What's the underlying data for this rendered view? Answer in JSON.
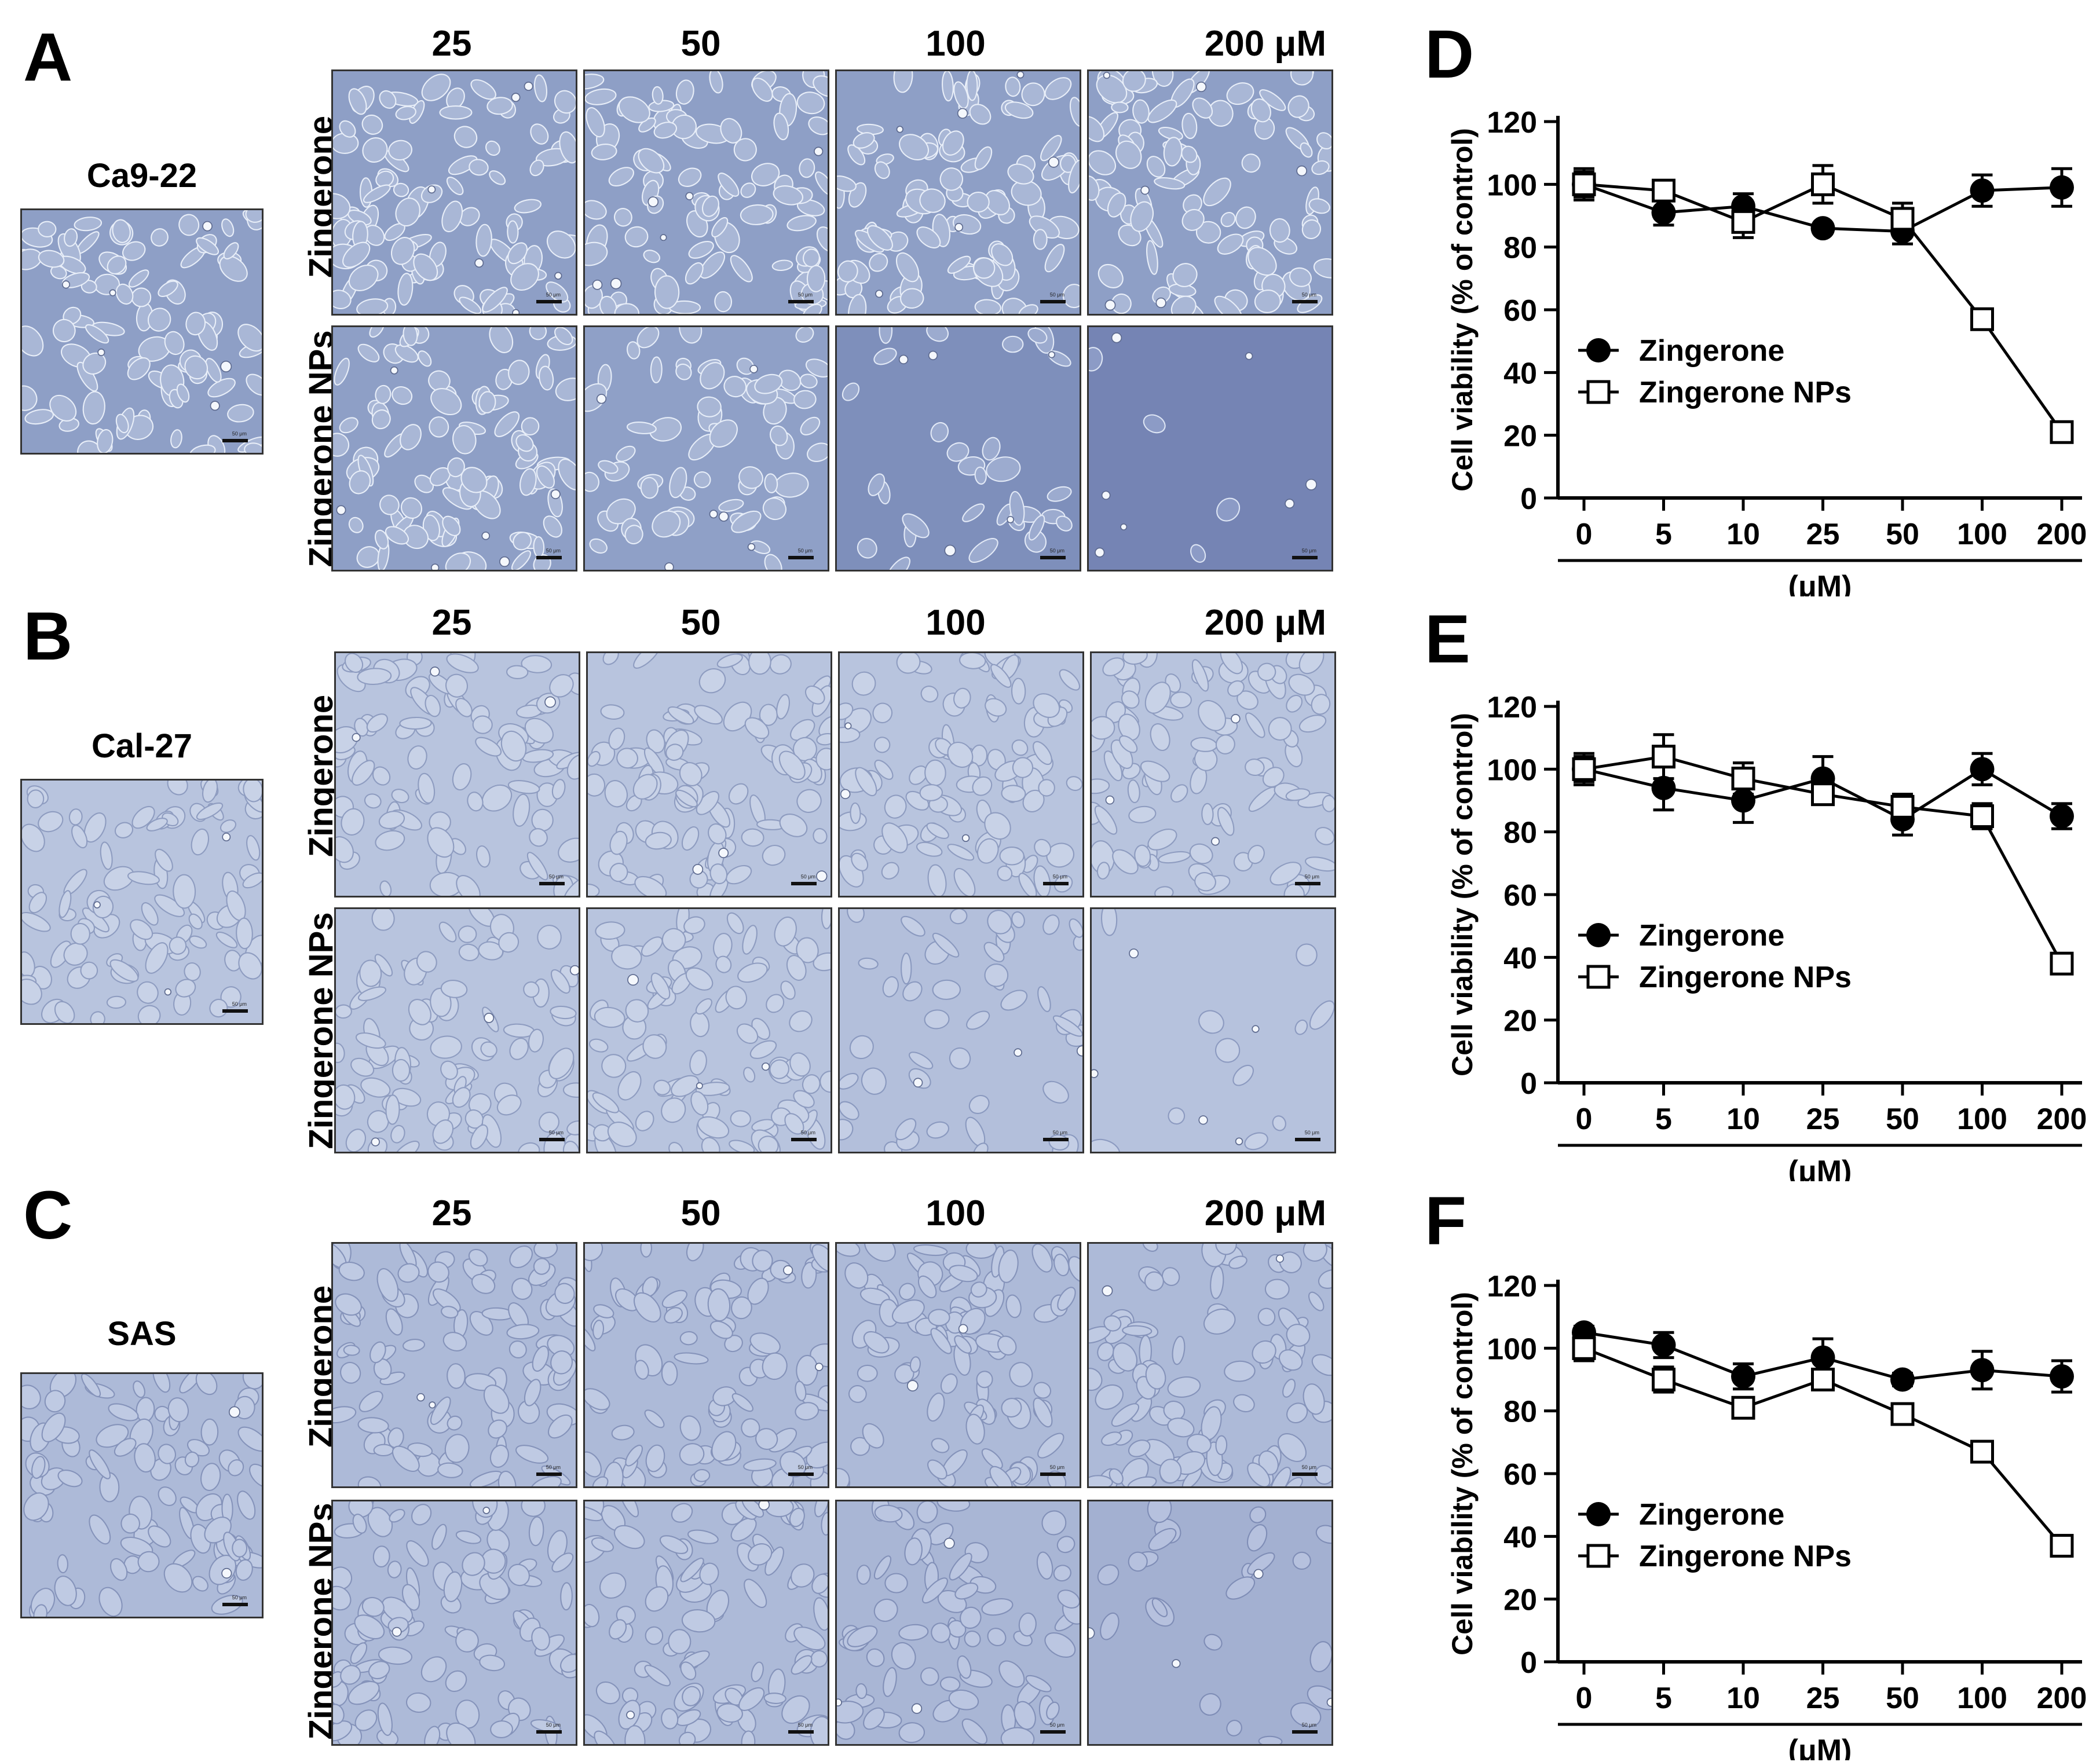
{
  "colors": {
    "microscopy_blue": "#8fa0c6",
    "cell_light": "#dfe6f3",
    "ink": "#000000"
  },
  "concentration_header": [
    "25",
    "50",
    "100",
    "200  μM"
  ],
  "row_labels": {
    "top": "Zingerone",
    "bottom": "Zingerone NPs"
  },
  "scale_bar_text": "50 μm",
  "panels": [
    {
      "letter": "A",
      "cell_line": "Ca9-22"
    },
    {
      "letter": "B",
      "cell_line": "Cal-27"
    },
    {
      "letter": "C",
      "cell_line": "SAS"
    }
  ],
  "chart_data": [
    {
      "panel": "D",
      "type": "line",
      "categories": [
        "0",
        "5",
        "10",
        "25",
        "50",
        "100",
        "200"
      ],
      "ylabel": "Cell viability (% of control)",
      "xlabel": "(μM)",
      "ylim": [
        0,
        120
      ],
      "yticks": [
        "0",
        "20",
        "40",
        "60",
        "80",
        "100",
        "120"
      ],
      "legend_position": "middle-left",
      "series": [
        {
          "name": "Zingerone",
          "marker": "filled-circle",
          "values": [
            100,
            91,
            93,
            86,
            85,
            98,
            99
          ],
          "errors": [
            5,
            4,
            4,
            1,
            4,
            5,
            6
          ]
        },
        {
          "name": "Zingerone NPs",
          "marker": "open-square",
          "values": [
            100,
            98,
            88,
            100,
            89,
            57,
            21
          ],
          "errors": [
            4,
            3,
            5,
            6,
            5,
            2,
            1
          ]
        }
      ]
    },
    {
      "panel": "E",
      "type": "line",
      "categories": [
        "0",
        "5",
        "10",
        "25",
        "50",
        "100",
        "200"
      ],
      "ylabel": "Cell viability (% of control)",
      "xlabel": "(μM)",
      "ylim": [
        0,
        120
      ],
      "yticks": [
        "0",
        "20",
        "40",
        "60",
        "80",
        "100",
        "120"
      ],
      "legend_position": "middle-left",
      "series": [
        {
          "name": "Zingerone",
          "marker": "filled-circle",
          "values": [
            100,
            94,
            90,
            97,
            84,
            100,
            85
          ],
          "errors": [
            5,
            7,
            7,
            7,
            5,
            5,
            4
          ]
        },
        {
          "name": "Zingerone NPs",
          "marker": "open-square",
          "values": [
            100,
            104,
            97,
            92,
            88,
            85,
            38
          ],
          "errors": [
            4,
            7,
            5,
            3,
            4,
            4,
            2
          ]
        }
      ]
    },
    {
      "panel": "F",
      "type": "line",
      "categories": [
        "0",
        "5",
        "10",
        "25",
        "50",
        "100",
        "200"
      ],
      "ylabel": "Cell viability (% of control)",
      "xlabel": "(μM)",
      "ylim": [
        0,
        120
      ],
      "yticks": [
        "0",
        "20",
        "40",
        "60",
        "80",
        "100",
        "120"
      ],
      "legend_position": "middle-left",
      "series": [
        {
          "name": "Zingerone",
          "marker": "filled-circle",
          "values": [
            105,
            101,
            91,
            97,
            90,
            93,
            91
          ],
          "errors": [
            2,
            4,
            4,
            6,
            2,
            6,
            5
          ]
        },
        {
          "name": "Zingerone NPs",
          "marker": "open-square",
          "values": [
            100,
            90,
            81,
            90,
            79,
            67,
            37
          ],
          "errors": [
            4,
            4,
            3,
            2,
            1,
            1,
            1
          ]
        }
      ]
    }
  ]
}
